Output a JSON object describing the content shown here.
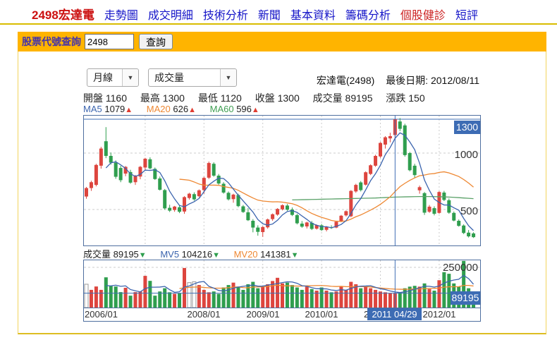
{
  "nav": {
    "items": [
      {
        "label": "2498宏達電",
        "color": "#cc1111"
      },
      {
        "label": "走勢圖",
        "color": "#1414c8"
      },
      {
        "label": "成交明細",
        "color": "#1414c8"
      },
      {
        "label": "技術分析",
        "color": "#1414c8"
      },
      {
        "label": "新聞",
        "color": "#1414c8"
      },
      {
        "label": "基本資料",
        "color": "#1414c8"
      },
      {
        "label": "籌碼分析",
        "color": "#1414c8"
      },
      {
        "label": "個股健診",
        "color": "#cc2222"
      },
      {
        "label": "短評",
        "color": "#1414c8"
      }
    ]
  },
  "query": {
    "label": "股票代號查詢",
    "value": "2498",
    "button": "查詢"
  },
  "toolbar": {
    "period": "月線",
    "indicator": "成交量",
    "chevron": "▼"
  },
  "header": {
    "stock": "宏達電(2498)",
    "last_date": "最後日期: 2012/08/11"
  },
  "readout": {
    "items": [
      {
        "k": "開盤",
        "v": "1160"
      },
      {
        "k": "最高",
        "v": "1300"
      },
      {
        "k": "最低",
        "v": "1120"
      },
      {
        "k": "收盤",
        "v": "1300"
      },
      {
        "k": "成交量",
        "v": "89195"
      },
      {
        "k": "漲跌",
        "v": "150"
      }
    ]
  },
  "ma_row": {
    "arrow": "▲",
    "items": [
      {
        "label": "MA5",
        "value": "1079"
      },
      {
        "label": "MA20",
        "value": "626"
      },
      {
        "label": "MA60",
        "value": "596"
      }
    ]
  },
  "vol_row": {
    "arrow": "▼",
    "vol_label": "成交量",
    "vol_value": "89195",
    "items": [
      {
        "label": "MV5",
        "value": "104216"
      },
      {
        "label": "MV20",
        "value": "141381"
      }
    ]
  },
  "price_axis": {
    "badge": "1300",
    "labels": [
      "1000",
      "500"
    ]
  },
  "vol_axis": {
    "top": "250000",
    "badge": "89195"
  },
  "x_axis": {
    "labels": [
      "2006/01",
      "2008/01",
      "2009/01",
      "2010/01",
      "2011/01",
      "2012/01"
    ],
    "selected": "2011 04/29"
  },
  "chart_data": {
    "type": "candlestick",
    "title": "宏達電(2498) 月線 成交量",
    "x_range": [
      "2006/01",
      "2012/08"
    ],
    "price_gridlines": [
      1000,
      500
    ],
    "volume_gridline_k": 250,
    "selected_index": 63,
    "selected": {
      "date": "2011 04/29",
      "open": 1160,
      "high": 1300,
      "low": 1120,
      "close": 1300,
      "volume": 89195,
      "change": 150
    },
    "candles": [
      [
        615,
        700,
        595,
        690,
        145
      ],
      [
        690,
        755,
        665,
        742,
        110
      ],
      [
        718,
        905,
        705,
        895,
        131
      ],
      [
        888,
        1055,
        862,
        1040,
        110
      ],
      [
        1105,
        1230,
        955,
        975,
        188
      ],
      [
        975,
        1005,
        898,
        915,
        136
      ],
      [
        915,
        935,
        772,
        790,
        131
      ],
      [
        868,
        888,
        742,
        760,
        96
      ],
      [
        818,
        885,
        795,
        878,
        123
      ],
      [
        832,
        852,
        728,
        738,
        74
      ],
      [
        742,
        806,
        718,
        800,
        96
      ],
      [
        792,
        886,
        768,
        878,
        100
      ],
      [
        872,
        958,
        848,
        950,
        197
      ],
      [
        945,
        962,
        856,
        865,
        166
      ],
      [
        860,
        872,
        762,
        770,
        74
      ],
      [
        775,
        792,
        668,
        675,
        100
      ],
      [
        672,
        682,
        498,
        510,
        120
      ],
      [
        515,
        542,
        478,
        490,
        95
      ],
      [
        496,
        532,
        480,
        526,
        85
      ],
      [
        520,
        538,
        468,
        480,
        90
      ],
      [
        482,
        618,
        462,
        610,
        246
      ],
      [
        602,
        648,
        588,
        640,
        155
      ],
      [
        636,
        652,
        578,
        590,
        160
      ],
      [
        618,
        678,
        608,
        670,
        140
      ],
      [
        672,
        790,
        640,
        780,
        110
      ],
      [
        782,
        925,
        770,
        912,
        95
      ],
      [
        905,
        918,
        790,
        800,
        100
      ],
      [
        800,
        815,
        720,
        730,
        85
      ],
      [
        728,
        742,
        640,
        650,
        125
      ],
      [
        648,
        660,
        580,
        590,
        140
      ],
      [
        592,
        640,
        560,
        632,
        155
      ],
      [
        628,
        640,
        520,
        530,
        130
      ],
      [
        528,
        540,
        470,
        478,
        110
      ],
      [
        475,
        512,
        398,
        405,
        145
      ],
      [
        400,
        415,
        298,
        340,
        160
      ],
      [
        340,
        360,
        268,
        302,
        120
      ],
      [
        300,
        352,
        258,
        345,
        130
      ],
      [
        342,
        420,
        330,
        412,
        145
      ],
      [
        415,
        465,
        400,
        458,
        165
      ],
      [
        455,
        512,
        445,
        505,
        185
      ],
      [
        502,
        545,
        492,
        538,
        150
      ],
      [
        535,
        548,
        488,
        498,
        155
      ],
      [
        500,
        518,
        442,
        452,
        140
      ],
      [
        450,
        462,
        368,
        378,
        125
      ],
      [
        375,
        398,
        338,
        348,
        110
      ],
      [
        350,
        392,
        332,
        385,
        130
      ],
      [
        382,
        398,
        318,
        328,
        115
      ],
      [
        330,
        368,
        322,
        362,
        105
      ],
      [
        360,
        372,
        310,
        318,
        125
      ],
      [
        320,
        352,
        306,
        345,
        105
      ],
      [
        342,
        360,
        328,
        338,
        95
      ],
      [
        340,
        398,
        334,
        392,
        100
      ],
      [
        395,
        452,
        388,
        445,
        130
      ],
      [
        448,
        492,
        438,
        485,
        110
      ],
      [
        440,
        672,
        432,
        665,
        160
      ],
      [
        660,
        728,
        648,
        718,
        145
      ],
      [
        740,
        752,
        660,
        672,
        120
      ],
      [
        720,
        838,
        712,
        830,
        135
      ],
      [
        815,
        900,
        805,
        892,
        120
      ],
      [
        888,
        985,
        878,
        975,
        110
      ],
      [
        970,
        1098,
        958,
        1090,
        100
      ],
      [
        1075,
        1150,
        1040,
        1140,
        95
      ],
      [
        1130,
        1180,
        1095,
        1150,
        90
      ],
      [
        1160,
        1300,
        1120,
        1300,
        89.2
      ],
      [
        1280,
        1310,
        1195,
        1215,
        95
      ],
      [
        1245,
        1260,
        968,
        982,
        120
      ],
      [
        1000,
        1010,
        838,
        848,
        130
      ],
      [
        888,
        905,
        778,
        805,
        135
      ],
      [
        670,
        712,
        640,
        698,
        130
      ],
      [
        645,
        655,
        452,
        472,
        150
      ],
      [
        480,
        540,
        470,
        525,
        115
      ],
      [
        512,
        528,
        448,
        462,
        105
      ],
      [
        470,
        662,
        462,
        655,
        170
      ],
      [
        650,
        665,
        575,
        585,
        220
      ],
      [
        582,
        598,
        462,
        472,
        210
      ],
      [
        470,
        482,
        395,
        402,
        150
      ],
      [
        400,
        412,
        348,
        355,
        130
      ],
      [
        358,
        368,
        282,
        292,
        290
      ],
      [
        295,
        318,
        252,
        262,
        120
      ],
      [
        288,
        298,
        248,
        255,
        35
      ]
    ],
    "volume_unit": "thousands",
    "hollow_volume_indices": [
      0,
      21,
      22
    ],
    "ma60_start_index": 42,
    "ma60": [
      585,
      586,
      587,
      588,
      589,
      590,
      591,
      592,
      593,
      594,
      595,
      596,
      597,
      598,
      599,
      600,
      601,
      602,
      604,
      606,
      608,
      610,
      611,
      612,
      613,
      614,
      615,
      615,
      615,
      614,
      613,
      612,
      610,
      608,
      605,
      602,
      599,
      596
    ],
    "year_tick_indices": [
      12,
      24,
      36,
      48,
      60,
      72
    ],
    "colors": {
      "up": "#dd453e",
      "down": "#2f9e4e",
      "ma5": "#3b64ae",
      "ma20": "#ee8833",
      "ma60": "#5aa168",
      "crosshair": "#3f6fb5",
      "badge": "#3d6cb4",
      "grid": "#cccccc",
      "hollow_stroke": "#999999"
    }
  }
}
